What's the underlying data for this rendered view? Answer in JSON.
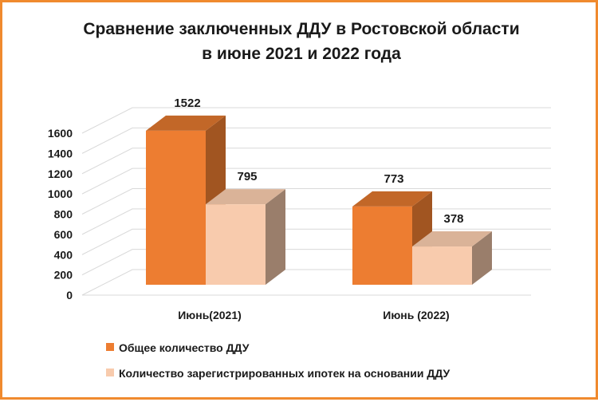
{
  "chart_data": {
    "type": "bar",
    "title": "Сравнение заключенных ДДУ в Ростовской области",
    "subtitle": "в июне 2021 и 2022 года",
    "categories": [
      "Июнь(2021)",
      "Июнь (2022)"
    ],
    "series": [
      {
        "name": "Общее количество ДДУ",
        "values": [
          1522,
          773
        ],
        "color": "#ed7d31"
      },
      {
        "name": "Количество зарегистрированных ипотек на основании ДДУ",
        "values": [
          795,
          378
        ],
        "color": "#f8cbad"
      }
    ],
    "ylim": [
      0,
      1600
    ],
    "yticks": [
      0,
      200,
      400,
      600,
      800,
      1000,
      1200,
      1400,
      1600
    ],
    "legend_position": "bottom",
    "grid": true
  },
  "frame_color": "#f08a2e"
}
